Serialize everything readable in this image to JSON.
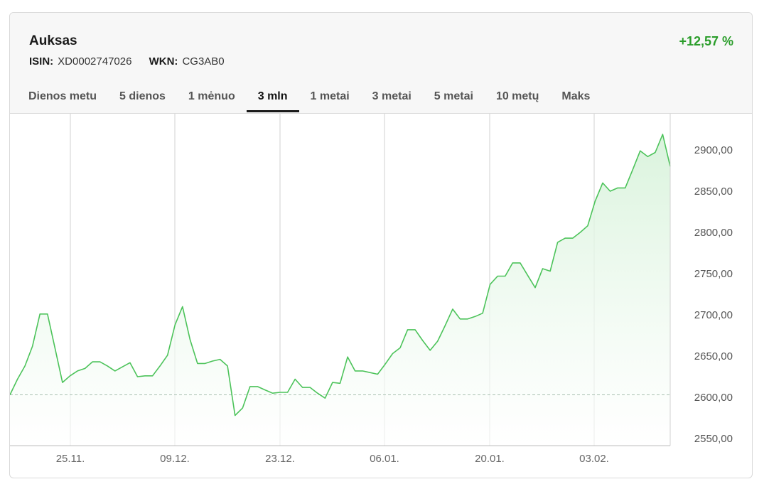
{
  "instrument": {
    "name": "Auksas",
    "isin_label": "ISIN:",
    "isin": "XD0002747026",
    "wkn_label": "WKN:",
    "wkn": "CG3AB0",
    "change": "+12,57  %"
  },
  "tabs": [
    {
      "label": "Dienos metu",
      "active": false
    },
    {
      "label": "5 dienos",
      "active": false
    },
    {
      "label": "1 mėnuo",
      "active": false
    },
    {
      "label": "3 mln",
      "active": true
    },
    {
      "label": "1 metai",
      "active": false
    },
    {
      "label": "3 metai",
      "active": false
    },
    {
      "label": "5 metai",
      "active": false
    },
    {
      "label": "10 metų",
      "active": false
    },
    {
      "label": "Maks",
      "active": false
    }
  ],
  "chart_data": {
    "type": "area",
    "ylim": [
      2550,
      2925
    ],
    "yticks": [
      2550,
      2600,
      2650,
      2700,
      2750,
      2800,
      2850,
      2900
    ],
    "ytick_labels": [
      "2550,00",
      "2600,00",
      "2650,00",
      "2700,00",
      "2750,00",
      "2800,00",
      "2850,00",
      "2900,00"
    ],
    "xticks": [
      "25.11.",
      "09.12.",
      "23.12.",
      "06.01.",
      "20.01.",
      "03.02."
    ],
    "baseline": 2603,
    "line_color": "#4cc35a",
    "fill_color": "#d6f2d9",
    "values": [
      2603,
      2622,
      2638,
      2662,
      2701,
      2701,
      2660,
      2618,
      2626,
      2632,
      2635,
      2643,
      2643,
      2638,
      2632,
      2637,
      2642,
      2625,
      2626,
      2626,
      2638,
      2651,
      2688,
      2710,
      2670,
      2641,
      2641,
      2644,
      2646,
      2638,
      2578,
      2587,
      2613,
      2613,
      2609,
      2605,
      2606,
      2606,
      2622,
      2612,
      2612,
      2605,
      2599,
      2618,
      2617,
      2649,
      2632,
      2632,
      2630,
      2628,
      2640,
      2653,
      2660,
      2682,
      2682,
      2669,
      2657,
      2668,
      2687,
      2707,
      2695,
      2695,
      2698,
      2702,
      2737,
      2747,
      2747,
      2763,
      2763,
      2748,
      2733,
      2756,
      2753,
      2788,
      2793,
      2793,
      2800,
      2808,
      2838,
      2860,
      2850,
      2854,
      2854,
      2876,
      2899,
      2892,
      2897,
      2919,
      2880
    ]
  }
}
